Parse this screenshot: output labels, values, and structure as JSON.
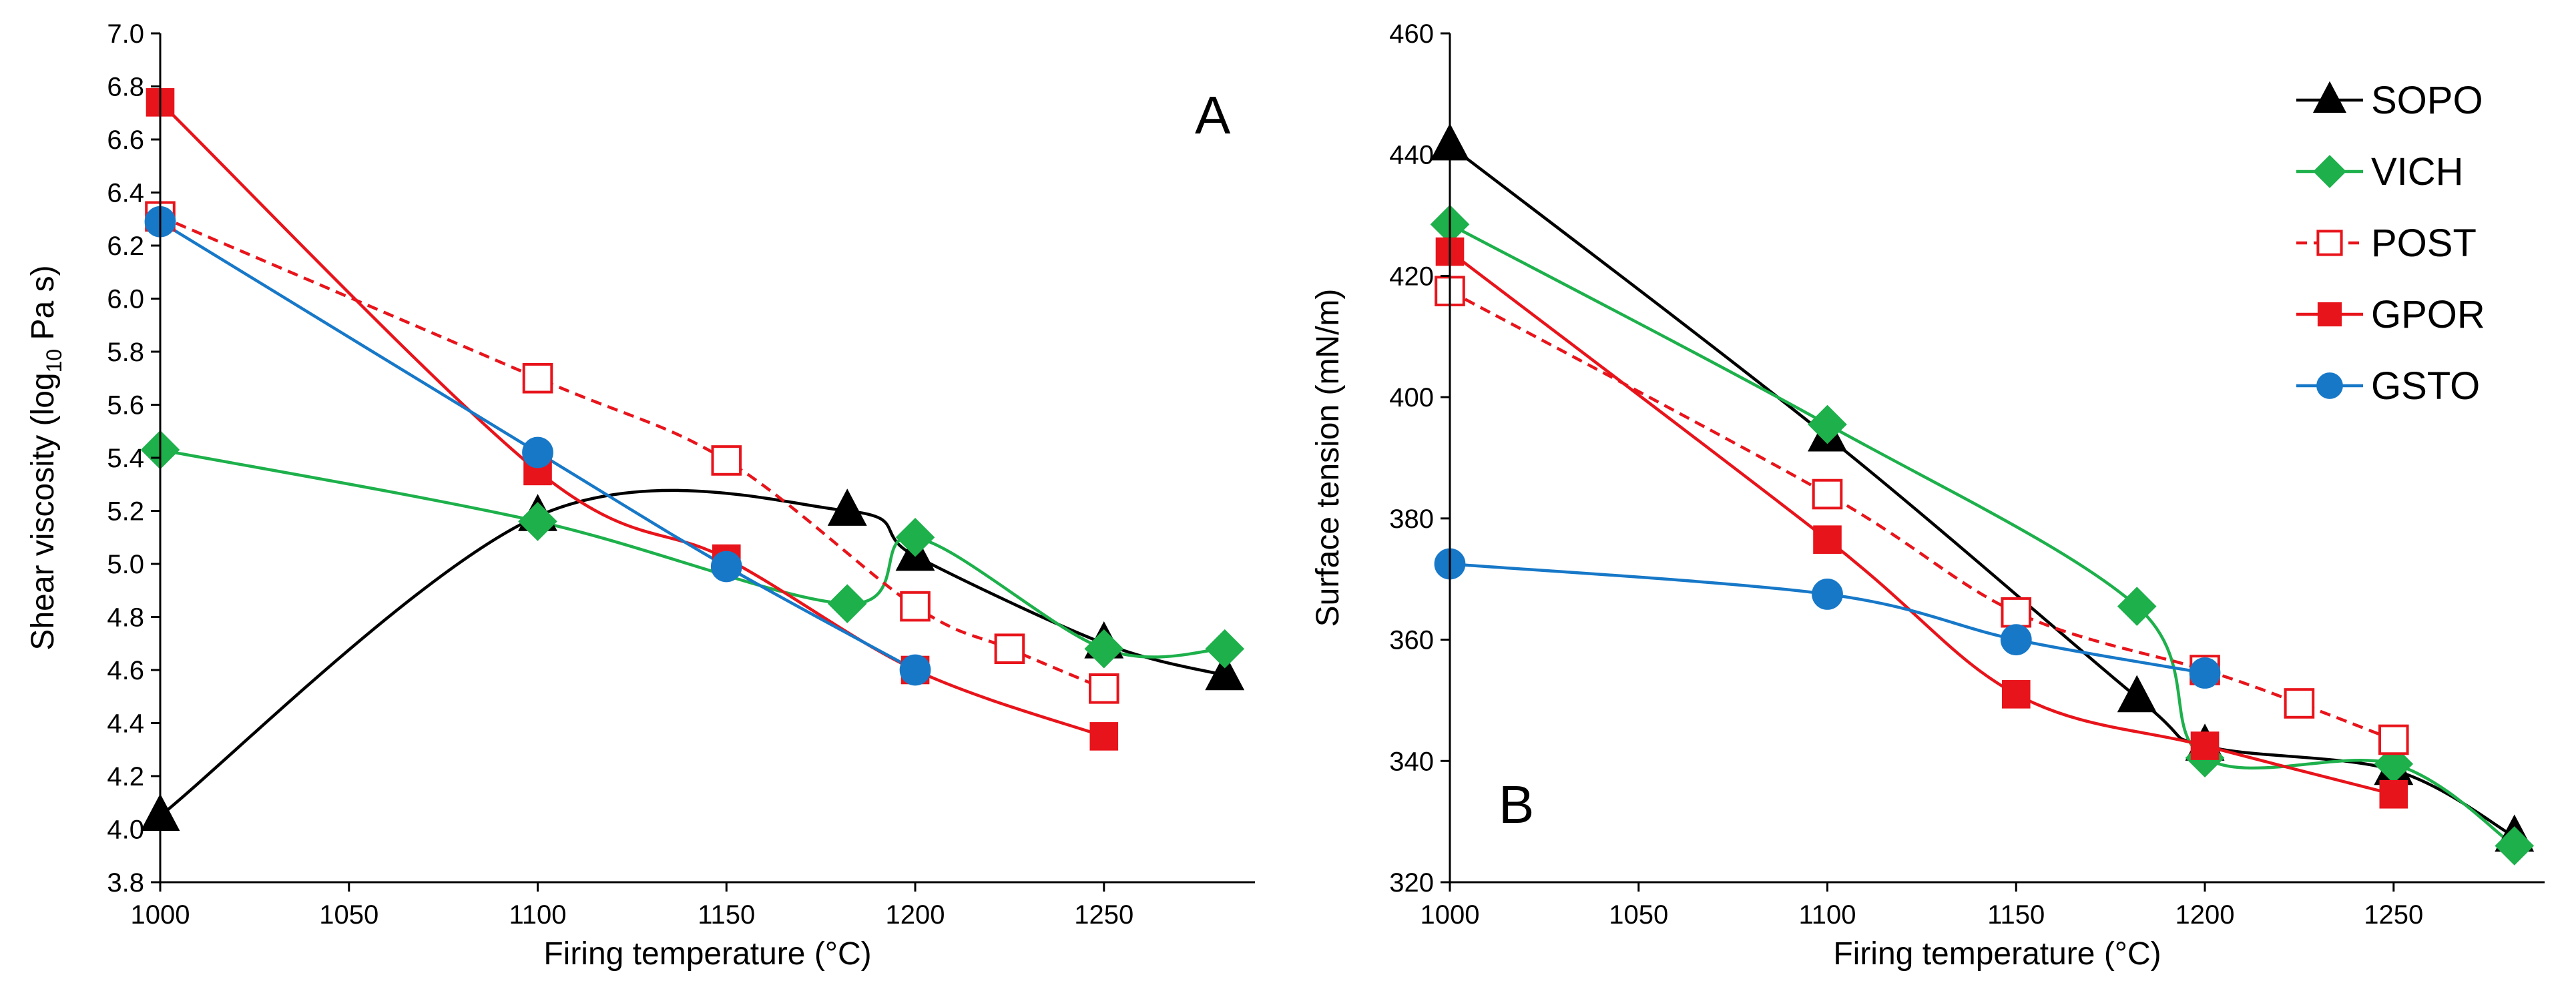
{
  "chart_data": [
    {
      "type": "line",
      "panel_label": "A",
      "xlabel": "Firing temperature (°C)",
      "ylabel_main": "Shear viscosity (log",
      "ylabel_sub": "10",
      "ylabel_tail": " Pa s)",
      "xlim": [
        1000,
        1290
      ],
      "ylim": [
        3.8,
        7.0
      ],
      "xticks": [
        1000,
        1050,
        1100,
        1150,
        1200,
        1250
      ],
      "xtick_labels": [
        "1000",
        "1050",
        "1100",
        "1150",
        "1200",
        "1250"
      ],
      "yticks": [
        3.8,
        4.0,
        4.2,
        4.4,
        4.6,
        4.8,
        5.0,
        5.2,
        5.4,
        5.6,
        5.8,
        6.0,
        6.2,
        6.4,
        6.6,
        6.8,
        7.0
      ],
      "ytick_labels": [
        "3.8",
        "4.0",
        "4.2",
        "4.4",
        "4.6",
        "4.8",
        "5.0",
        "5.2",
        "5.4",
        "5.6",
        "5.8",
        "6.0",
        "6.2",
        "6.4",
        "6.6",
        "6.8",
        "7.0"
      ],
      "grid": false,
      "series": [
        {
          "name": "SOPO",
          "x": [
            1000,
            1100,
            1182,
            1200,
            1250,
            1282
          ],
          "y": [
            4.05,
            5.18,
            5.2,
            5.03,
            4.7,
            4.58
          ]
        },
        {
          "name": "VICH",
          "x": [
            1000,
            1100,
            1182,
            1200,
            1250,
            1282
          ],
          "y": [
            5.43,
            5.16,
            4.85,
            5.1,
            4.68,
            4.68
          ]
        },
        {
          "name": "POST",
          "x": [
            1000,
            1100,
            1150,
            1200,
            1225,
            1250
          ],
          "y": [
            6.31,
            5.7,
            5.39,
            4.84,
            4.68,
            4.53
          ]
        },
        {
          "name": "GPOR",
          "x": [
            1000,
            1100,
            1150,
            1200,
            1250
          ],
          "y": [
            6.74,
            5.35,
            5.02,
            4.6,
            4.35
          ]
        },
        {
          "name": "GSTO",
          "x": [
            1000,
            1100,
            1150,
            1200
          ],
          "y": [
            6.29,
            5.42,
            4.99,
            4.6
          ]
        }
      ]
    },
    {
      "type": "line",
      "panel_label": "B",
      "xlabel": "Firing temperature (°C)",
      "ylabel": "Surface tension (mN/m)",
      "xlim": [
        1000,
        1290
      ],
      "ylim": [
        320,
        460
      ],
      "xticks": [
        1000,
        1050,
        1100,
        1150,
        1200,
        1250
      ],
      "xtick_labels": [
        "1000",
        "1050",
        "1100",
        "1150",
        "1200",
        "1250"
      ],
      "yticks": [
        320,
        340,
        360,
        380,
        400,
        420,
        440,
        460
      ],
      "ytick_labels": [
        "320",
        "340",
        "360",
        "380",
        "400",
        "420",
        "440",
        "460"
      ],
      "grid": false,
      "legend_position": "top-right",
      "series": [
        {
          "name": "SOPO",
          "x": [
            1000,
            1100,
            1182,
            1200,
            1250,
            1282
          ],
          "y": [
            441.5,
            393.5,
            350.5,
            342.5,
            338.5,
            327.5
          ]
        },
        {
          "name": "VICH",
          "x": [
            1000,
            1100,
            1182,
            1200,
            1250,
            1282
          ],
          "y": [
            428.5,
            395.5,
            365.5,
            340.5,
            339.5,
            326.0
          ]
        },
        {
          "name": "POST",
          "x": [
            1000,
            1100,
            1150,
            1200,
            1225,
            1250
          ],
          "y": [
            417.5,
            384.0,
            364.5,
            355.0,
            349.5,
            343.5
          ]
        },
        {
          "name": "GPOR",
          "x": [
            1000,
            1100,
            1150,
            1200,
            1250
          ],
          "y": [
            424.0,
            376.5,
            351.0,
            342.5,
            334.5
          ]
        },
        {
          "name": "GSTO",
          "x": [
            1000,
            1100,
            1150,
            1200
          ],
          "y": [
            372.5,
            367.5,
            360.0,
            354.5
          ]
        }
      ]
    }
  ],
  "series_styles": {
    "SOPO": {
      "color": "#000000",
      "marker": "triangle",
      "filled": true,
      "dashed": false
    },
    "VICH": {
      "color": "#1DB04B",
      "marker": "diamond",
      "filled": true,
      "dashed": false
    },
    "POST": {
      "color": "#E8141B",
      "marker": "square",
      "filled": false,
      "dashed": true
    },
    "GPOR": {
      "color": "#E8141B",
      "marker": "square",
      "filled": true,
      "dashed": false
    },
    "GSTO": {
      "color": "#1778C8",
      "marker": "circle",
      "filled": true,
      "dashed": false
    }
  },
  "legend": {
    "entries": [
      "SOPO",
      "VICH",
      "POST",
      "GPOR",
      "GSTO"
    ]
  }
}
